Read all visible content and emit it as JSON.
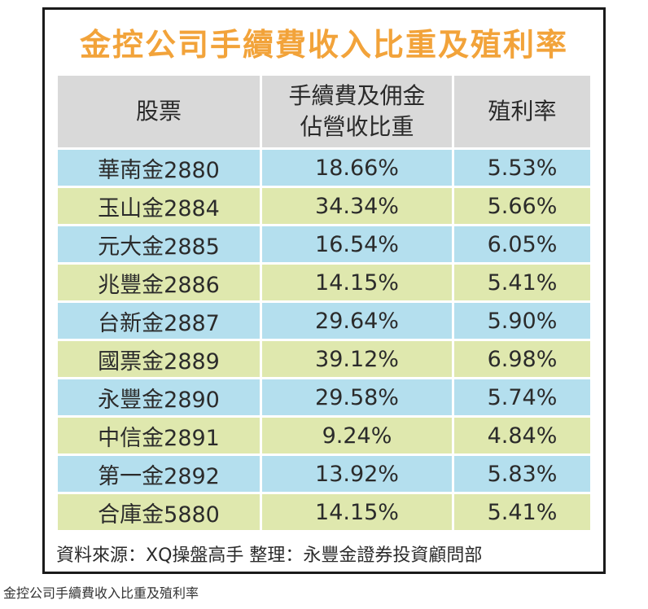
{
  "chart_data": {
    "type": "table",
    "title": "金控公司手續費收入比重及殖利率",
    "columns": [
      "股票",
      "手續費及佣金佔營收比重",
      "殖利率"
    ],
    "header_lines": [
      [
        "股票"
      ],
      [
        "手續費及佣金",
        "佔營收比重"
      ],
      [
        "殖利率"
      ]
    ],
    "rows": [
      [
        "華南金2880",
        "18.66%",
        "5.53%"
      ],
      [
        "玉山金2884",
        "34.34%",
        "5.66%"
      ],
      [
        "元大金2885",
        "16.54%",
        "6.05%"
      ],
      [
        "兆豐金2886",
        "14.15%",
        "5.41%"
      ],
      [
        "台新金2887",
        "29.64%",
        "5.90%"
      ],
      [
        "國票金2889",
        "39.12%",
        "6.98%"
      ],
      [
        "永豐金2890",
        "29.58%",
        "5.74%"
      ],
      [
        "中信金2891",
        "9.24%",
        "4.84%"
      ],
      [
        "第一金2892",
        "13.92%",
        "5.83%"
      ],
      [
        "合庫金5880",
        "14.15%",
        "5.41%"
      ]
    ],
    "source": "資料來源：XQ操盤高手 整理：永豐金證券投資顧問部"
  },
  "caption": "金控公司手續費收入比重及殖利率",
  "colors": {
    "title": "#f2a33a",
    "header_bg": "#d9d9d9",
    "row_blue": "#b4dfee",
    "row_green": "#dfe8ae",
    "border": "#1a1a1a"
  }
}
